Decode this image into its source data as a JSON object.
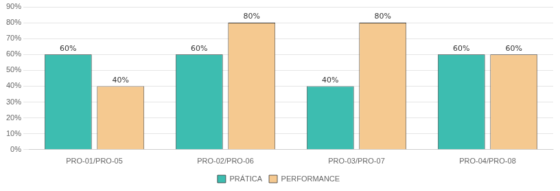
{
  "chart_data": {
    "type": "bar",
    "categories": [
      "PRO-01/PRO-05",
      "PRO-02/PRO-06",
      "PRO-03/PRO-07",
      "PRO-04/PRO-08"
    ],
    "series": [
      {
        "name": "PRÁTICA",
        "color": "#3DBDB0",
        "values": [
          0.6,
          0.6,
          0.4,
          0.6
        ],
        "value_labels": [
          "60%",
          "60%",
          "40%",
          "60%"
        ]
      },
      {
        "name": "PERFORMANCE",
        "color": "#F5C990",
        "values": [
          0.4,
          0.8,
          0.8,
          0.6
        ],
        "value_labels": [
          "40%",
          "80%",
          "80%",
          "60%"
        ]
      }
    ],
    "ylim": [
      0,
      0.9
    ],
    "yticks": [
      {
        "value": 0.0,
        "label": "0%"
      },
      {
        "value": 0.1,
        "label": "10%"
      },
      {
        "value": 0.2,
        "label": "20%"
      },
      {
        "value": 0.3,
        "label": "30%"
      },
      {
        "value": 0.4,
        "label": "40%"
      },
      {
        "value": 0.5,
        "label": "50%"
      },
      {
        "value": 0.6,
        "label": "60%"
      },
      {
        "value": 0.7,
        "label": "70%"
      },
      {
        "value": 0.8,
        "label": "80%"
      },
      {
        "value": 0.9,
        "label": "90%"
      }
    ],
    "grid": true,
    "legend": "bottom",
    "data_labels": true
  }
}
